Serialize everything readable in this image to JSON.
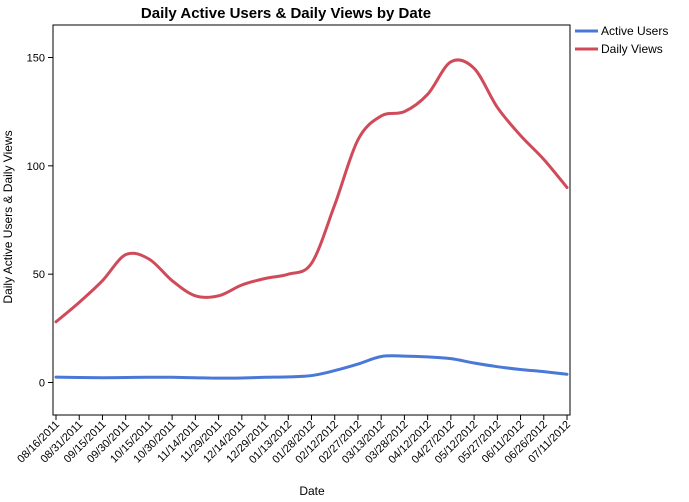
{
  "chart_data": {
    "type": "line",
    "title": "Daily Active Users & Daily Views by Date",
    "xlabel": "Date",
    "ylabel": "Daily Active Users & Daily Views",
    "ylim": [
      -15,
      165
    ],
    "yticks": [
      0,
      50,
      100,
      150
    ],
    "grid": false,
    "legend_position": "top-right",
    "x": [
      "08/16/2011",
      "08/31/2011",
      "09/15/2011",
      "09/30/2011",
      "10/15/2011",
      "10/30/2011",
      "11/14/2011",
      "11/29/2011",
      "12/14/2011",
      "12/29/2011",
      "01/13/2012",
      "01/28/2012",
      "02/12/2012",
      "02/27/2012",
      "03/13/2012",
      "03/28/2012",
      "04/12/2012",
      "04/27/2012",
      "05/12/2012",
      "05/27/2012",
      "06/11/2012",
      "06/26/2012",
      "07/11/2012"
    ],
    "series": [
      {
        "name": "Active Users",
        "color": "#4a78d6",
        "values": [
          2.5,
          2.3,
          2.2,
          2.3,
          2.4,
          2.4,
          2.2,
          2.0,
          2.1,
          2.4,
          2.6,
          3.2,
          5.5,
          8.5,
          12.0,
          12.2,
          11.8,
          11.0,
          9.0,
          7.3,
          6.0,
          5.0,
          3.8
        ]
      },
      {
        "name": "Daily Views",
        "color": "#d04a5a",
        "values": [
          28,
          37,
          47,
          59,
          57,
          47,
          40,
          40,
          45,
          48,
          50,
          55,
          82,
          112,
          123,
          125,
          133,
          148,
          145,
          127,
          114,
          103,
          90
        ]
      }
    ]
  }
}
